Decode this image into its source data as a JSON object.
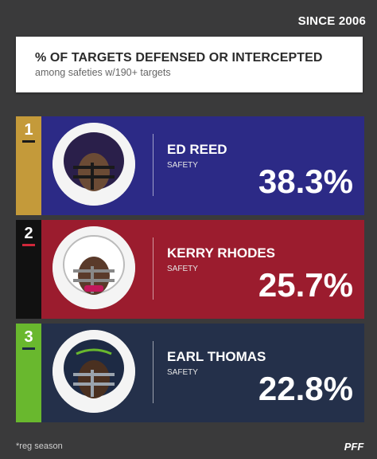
{
  "header": {
    "since_label": "SINCE 2006",
    "title": "% OF TARGETS DEFENSED OR INTERCEPTED",
    "subtitle": "among safeties w/190+ targets"
  },
  "rows": [
    {
      "rank": "1",
      "name": "ED REED",
      "position": "SAFETY",
      "value": "38.3%",
      "rank_color": "#c49a3a",
      "panel_color": "#2c2a86",
      "helmet_color": "#2a1f4a",
      "avatar_icon": "ed-reed-helmet-photo"
    },
    {
      "rank": "2",
      "name": "KERRY RHODES",
      "position": "SAFETY",
      "value": "25.7%",
      "rank_color": "#111111",
      "panel_color": "#9b1c2e",
      "helmet_color": "#ffffff",
      "avatar_icon": "kerry-rhodes-helmet-photo"
    },
    {
      "rank": "3",
      "name": "EARL THOMAS",
      "position": "SAFETY",
      "value": "22.8%",
      "rank_color": "#69b82e",
      "panel_color": "#24304a",
      "helmet_color": "#1d2a44",
      "avatar_icon": "earl-thomas-helmet-photo"
    }
  ],
  "footer": {
    "note": "*reg season",
    "logo_text": "PFF"
  }
}
